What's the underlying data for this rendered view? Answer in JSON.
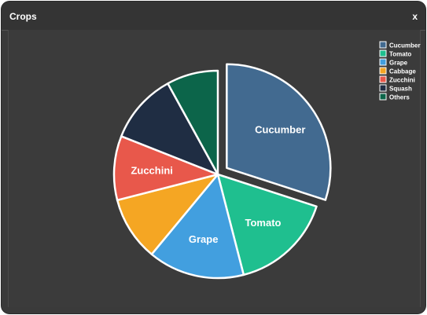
{
  "window": {
    "title": "Crops",
    "close_label": "x"
  },
  "chart_data": {
    "type": "pie",
    "categories": [
      "Cucumber",
      "Tomato",
      "Grape",
      "Cabbage",
      "Zucchini",
      "Squash",
      "Others"
    ],
    "values": [
      30,
      16,
      15,
      10,
      10,
      11,
      8
    ],
    "colors": [
      "#426a90",
      "#1fbf8f",
      "#429fdf",
      "#f5a623",
      "#e8584b",
      "#1f2d43",
      "#0c654a"
    ],
    "exploded": [
      "Cucumber"
    ],
    "slice_labels": [
      "Cucumber",
      "Tomato",
      "Grape",
      "",
      "Zucchini",
      "",
      ""
    ],
    "legend": {
      "position": "top-right",
      "items": [
        "Cucumber",
        "Tomato",
        "Grape",
        "Cabbage",
        "Zucchini",
        "Squash",
        "Others"
      ]
    },
    "title": ""
  }
}
